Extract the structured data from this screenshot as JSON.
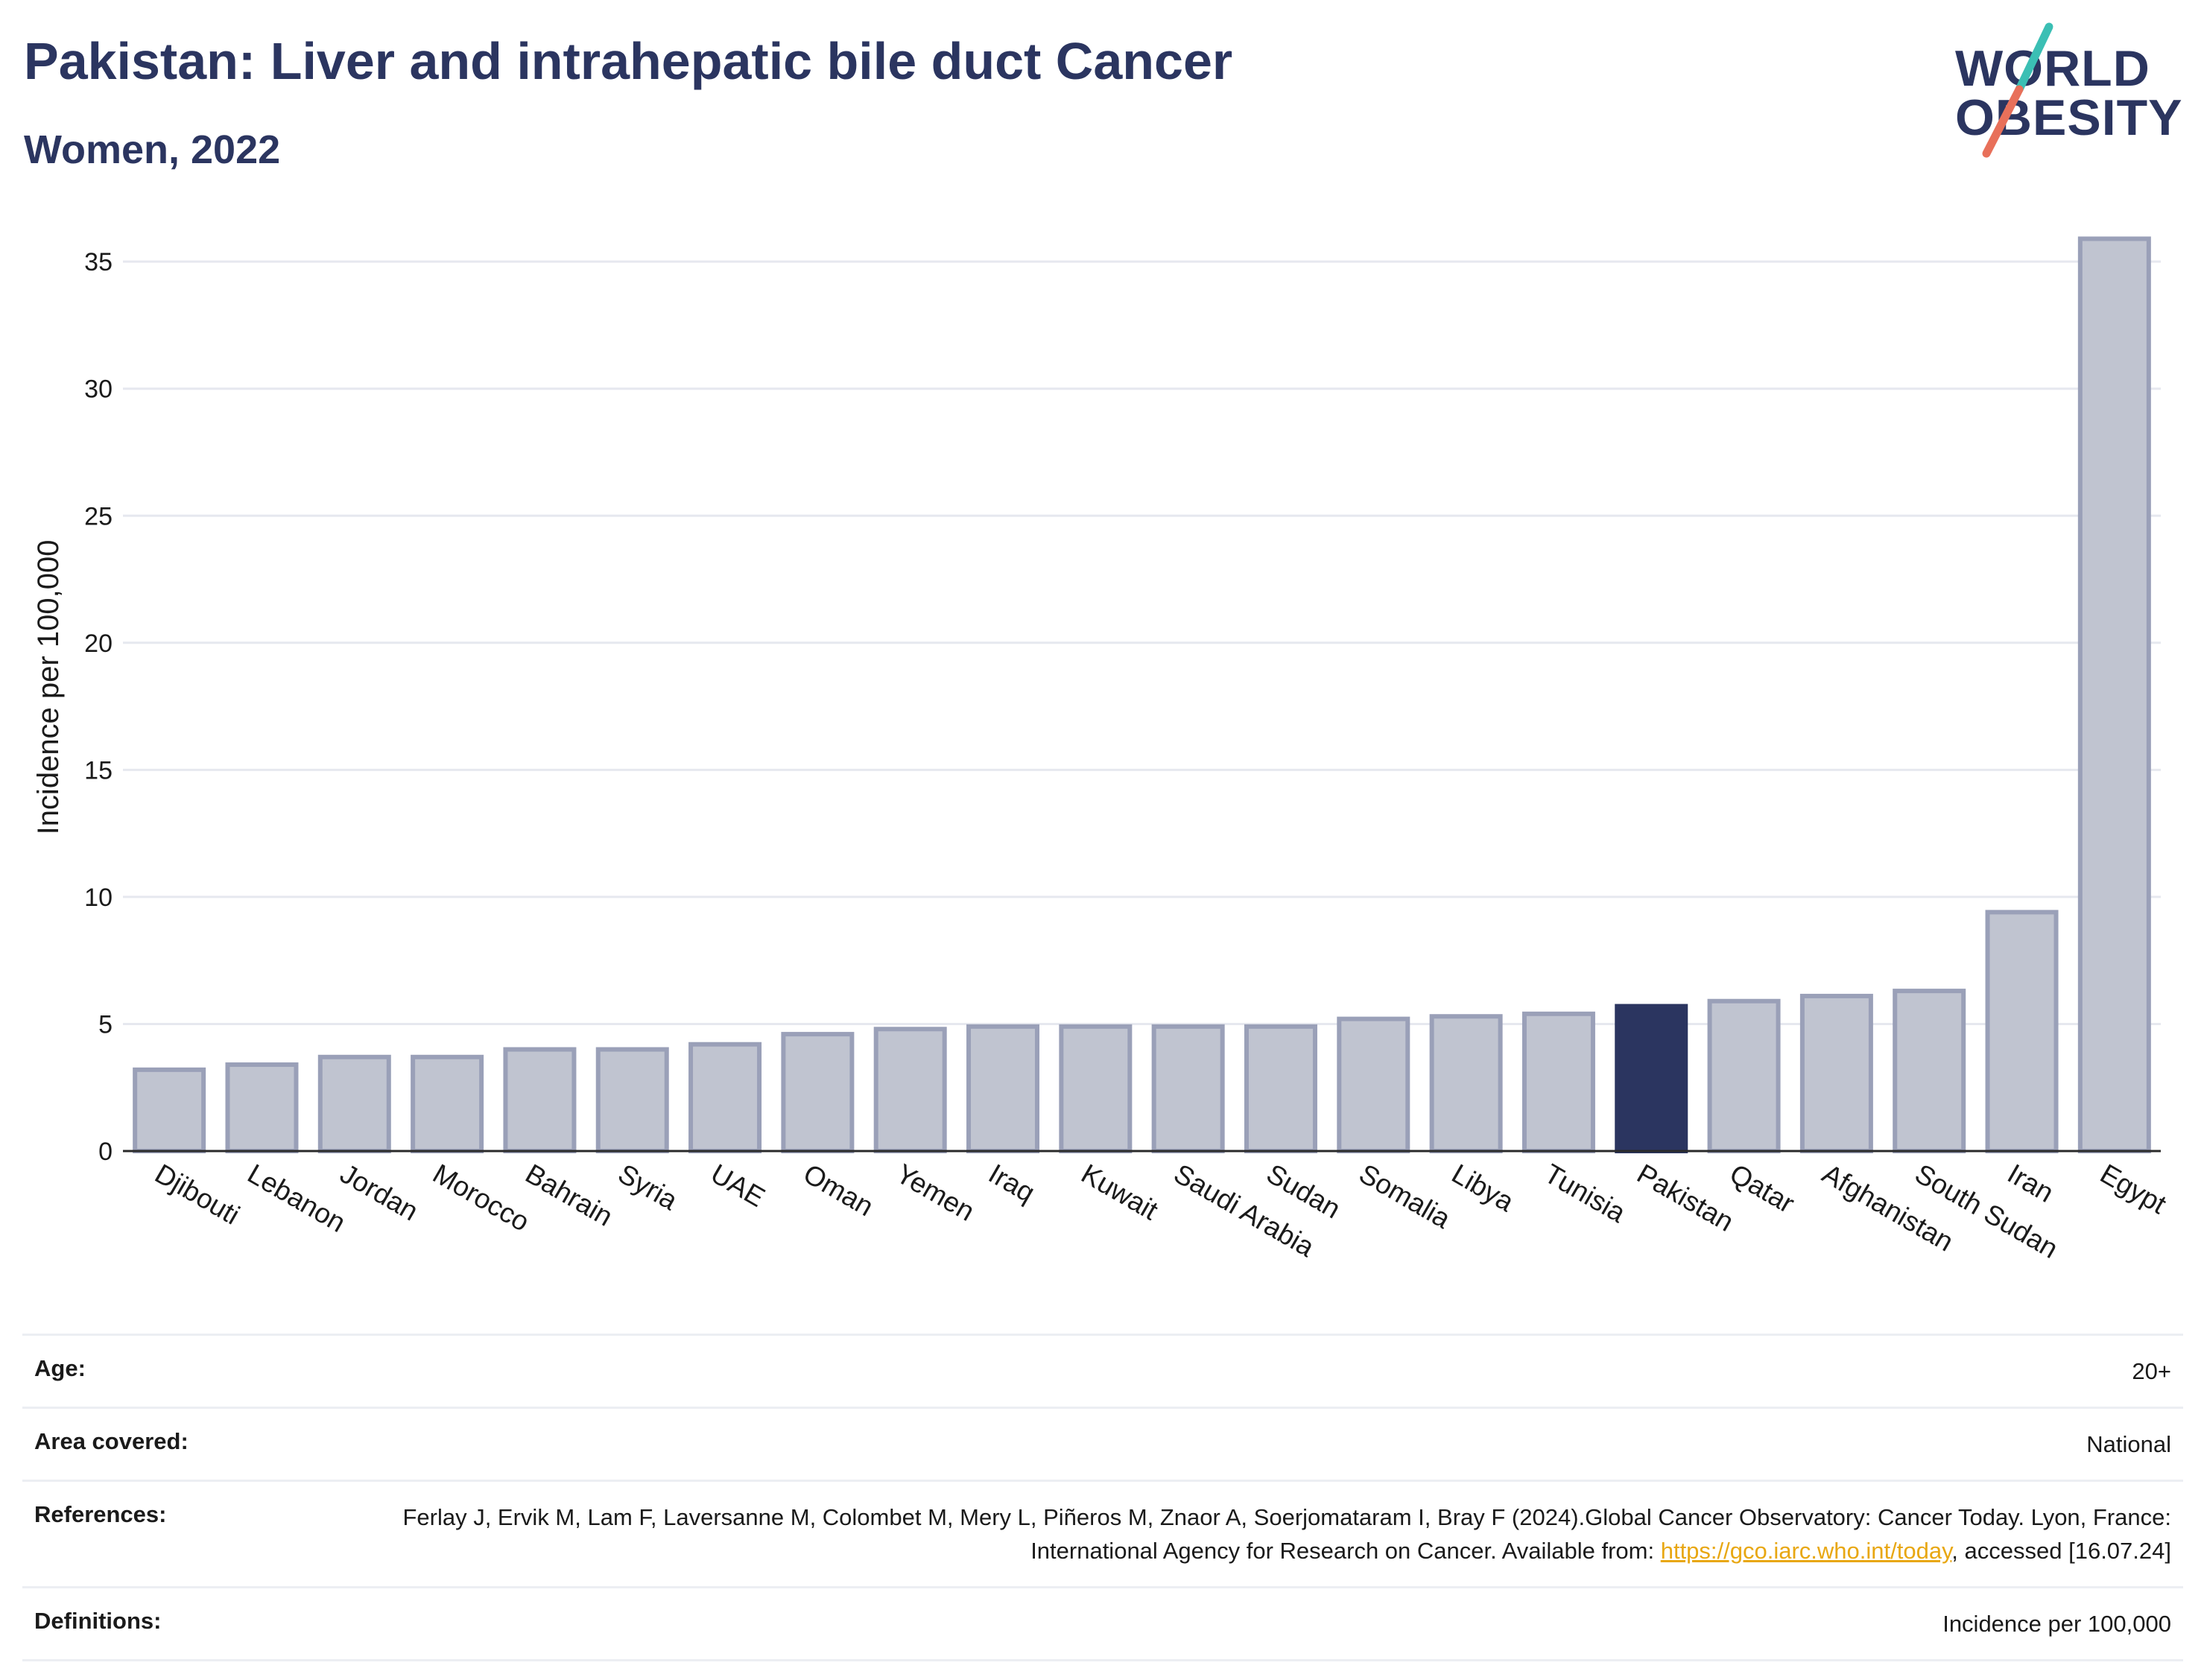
{
  "header": {
    "title": "Pakistan: Liver and intrahepatic bile duct Cancer",
    "subtitle": "Women, 2022"
  },
  "logo": {
    "line1": "WORLD",
    "line2": "OBESITY",
    "colors": {
      "text": "#2b3560",
      "slash_top": "#3bbfb4",
      "slash_bottom": "#e8705a"
    }
  },
  "chart_data": {
    "type": "bar",
    "ylabel": "Incidence per 100,000",
    "ylim": [
      0,
      36.5
    ],
    "yticks": [
      0,
      5,
      10,
      15,
      20,
      25,
      30,
      35
    ],
    "grid": true,
    "categories": [
      "Djibouti",
      "Lebanon",
      "Jordan",
      "Morocco",
      "Bahrain",
      "Syria",
      "UAE",
      "Oman",
      "Yemen",
      "Iraq",
      "Kuwait",
      "Saudi Arabia",
      "Sudan",
      "Somalia",
      "Libya",
      "Tunisia",
      "Pakistan",
      "Qatar",
      "Afghanistan",
      "South Sudan",
      "Iran",
      "Egypt"
    ],
    "values": [
      3.2,
      3.4,
      3.7,
      3.7,
      4.0,
      4.0,
      4.2,
      4.6,
      4.8,
      4.9,
      4.9,
      4.9,
      4.9,
      5.2,
      5.3,
      5.4,
      5.7,
      5.9,
      6.1,
      6.3,
      9.4,
      35.9
    ],
    "highlight": "Pakistan",
    "colors": {
      "bar": "#c0c4d0",
      "bar_edge": "#9aa0b8",
      "highlight": "#2b3560"
    }
  },
  "info": {
    "rows": [
      {
        "key": "Age:",
        "value": "20+"
      },
      {
        "key": "Area covered:",
        "value": "National"
      },
      {
        "key": "References:",
        "value_prefix": "Ferlay J, Ervik M, Lam F, Laversanne M, Colombet M, Mery L, Piñeros M, Znaor A, Soerjomataram I, Bray F (2024).Global Cancer Observatory: Cancer Today. Lyon, France: International Agency for Research on Cancer. Available from: ",
        "link": "https://gco.iarc.who.int/today",
        "value_suffix": ", accessed [16.07.24]"
      },
      {
        "key": "Definitions:",
        "value": "Incidence per 100,000"
      }
    ]
  }
}
